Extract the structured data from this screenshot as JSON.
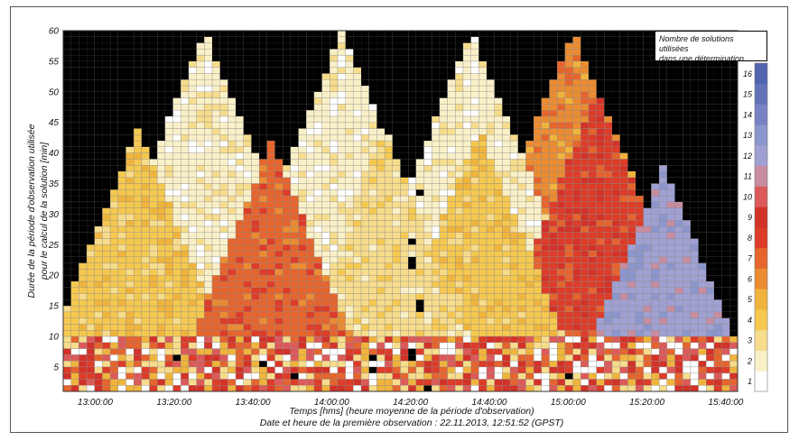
{
  "chart_data": {
    "type": "heatmap",
    "title": "",
    "xlabel": "Temps [hms] (heure moyenne de la période d'observation)",
    "ylabel_line1": "Durée de la période d'observation utilisée",
    "ylabel_line2": "pour le calcul de la solution [min]",
    "footnote": "Date et heure de la première observation : 22.11.2013, 12:51:52 (GPST)",
    "colorbar_title_line1": "Nombre de solutions utilisées",
    "colorbar_title_line2": "dans une détermination",
    "x_ticks": [
      "13:00:00",
      "13:20:00",
      "13:40:00",
      "14:00:00",
      "14:20:00",
      "14:40:00",
      "15:00:00",
      "15:20:00",
      "15:40:00"
    ],
    "y_ticks": [
      "5",
      "10",
      "15",
      "20",
      "25",
      "30",
      "35",
      "40",
      "45",
      "50",
      "55",
      "60"
    ],
    "colorbar_ticks": [
      "1",
      "2",
      "3",
      "4",
      "5",
      "6",
      "7",
      "8",
      "9",
      "10",
      "11",
      "12",
      "13",
      "14",
      "15",
      "16"
    ],
    "xlim": [
      "12:51:52",
      "15:43:00"
    ],
    "ylim": [
      1,
      60
    ],
    "cell_step_seconds": 120,
    "cell_step_minutes": 1,
    "outside_color": "#000000",
    "colormap": [
      "#ffffff",
      "#faf0c8",
      "#f7dc8c",
      "#f5c850",
      "#f0b43c",
      "#eb8c32",
      "#e6642d",
      "#dc3c28",
      "#d23228",
      "#dc5a5a",
      "#c88ca0",
      "#a0a0d2",
      "#8c96cd",
      "#7882c3",
      "#6473b9",
      "#5064af"
    ],
    "triangles": [
      {
        "center": "13:28:00",
        "apex_min": 60,
        "level": 2
      },
      {
        "center": "14:03:00",
        "apex_min": 60,
        "level": 2
      },
      {
        "center": "14:36:00",
        "apex_min": 60,
        "level": 2
      },
      {
        "center": "15:02:00",
        "apex_min": 60,
        "level": 6
      },
      {
        "center": "13:11:00",
        "apex_min": 44,
        "level": 4
      },
      {
        "center": "13:45:00",
        "apex_min": 42,
        "level": 7
      },
      {
        "center": "14:14:00",
        "apex_min": 44,
        "level": 3
      },
      {
        "center": "14:38:00",
        "apex_min": 44,
        "level": 4
      },
      {
        "center": "15:08:00",
        "apex_min": 50,
        "level": 8
      },
      {
        "center": "15:25:00",
        "apex_min": 38,
        "level": 12
      }
    ],
    "low_band": {
      "max_min": 10,
      "levels": [
        7,
        8,
        9,
        10,
        5,
        3,
        1
      ]
    },
    "black_cells": [
      {
        "t": "13:20:30",
        "d": 6
      },
      {
        "t": "13:43:00",
        "d": 5
      },
      {
        "t": "13:51:00",
        "d": 3
      },
      {
        "t": "14:10:00",
        "d": 6
      },
      {
        "t": "14:10:00",
        "d": 4
      },
      {
        "t": "14:20:30",
        "d": 25
      },
      {
        "t": "14:20:30",
        "d": 21
      },
      {
        "t": "14:21:30",
        "d": 22
      },
      {
        "t": "14:22:00",
        "d": 15
      },
      {
        "t": "14:22:00",
        "d": 14
      },
      {
        "t": "14:21:00",
        "d": 7
      },
      {
        "t": "14:20:30",
        "d": 6
      },
      {
        "t": "14:24:00",
        "d": 1
      },
      {
        "t": "14:22:00",
        "d": 33
      },
      {
        "t": "15:00:00",
        "d": 3
      }
    ]
  }
}
